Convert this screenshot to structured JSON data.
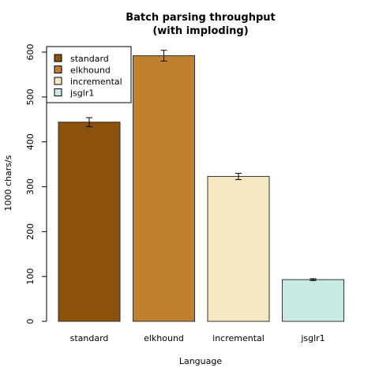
{
  "chart_data": {
    "type": "bar",
    "title_line1": "Batch parsing throughput",
    "title_line2": "(with imploding)",
    "xlabel": "Language",
    "ylabel": "1000 chars/s",
    "ylim": [
      0,
      600
    ],
    "yticks": [
      "0",
      "100",
      "200",
      "300",
      "400",
      "500",
      "600"
    ],
    "categories": [
      "standard",
      "elkhound",
      "incremental",
      "jsglr1"
    ],
    "values": [
      444,
      592,
      323,
      93
    ],
    "errors": [
      10,
      12,
      7,
      2
    ],
    "colors": [
      "#8c510a",
      "#bf812d",
      "#f6e8c3",
      "#c7eae5"
    ],
    "legend": [
      "standard",
      "elkhound",
      "incremental",
      "jsglr1"
    ],
    "legend_position": "top-left"
  }
}
